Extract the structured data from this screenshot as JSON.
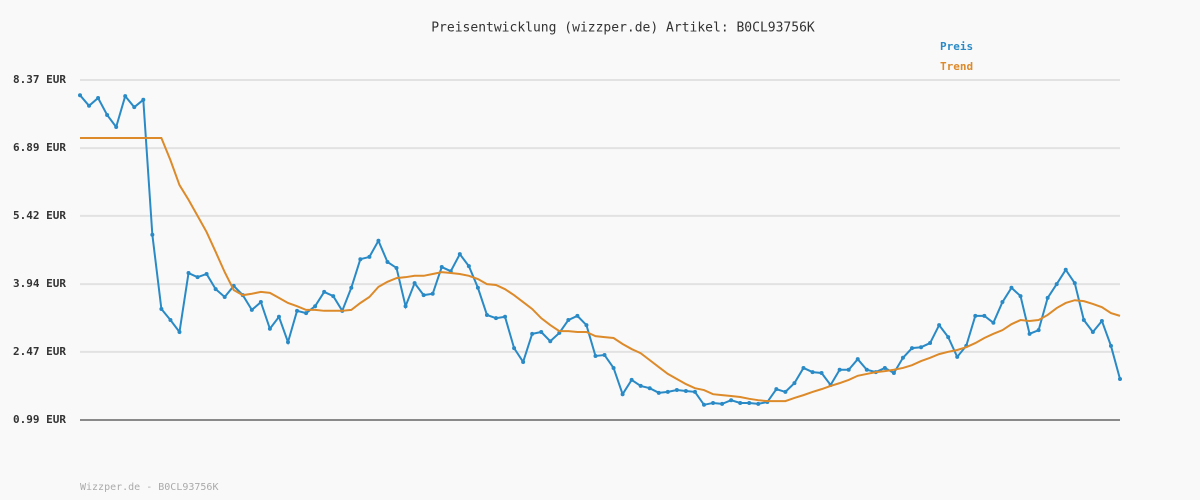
{
  "chart_data": {
    "type": "line",
    "title": "Preisentwicklung (wizzper.de) Artikel: B0CL93756K",
    "ylim": [
      0.99,
      8.37
    ],
    "yticks": [
      {
        "value": 0.99,
        "label": "0.99 EUR"
      },
      {
        "value": 2.47,
        "label": "2.47 EUR"
      },
      {
        "value": 3.94,
        "label": "3.94 EUR"
      },
      {
        "value": 5.42,
        "label": "5.42 EUR"
      },
      {
        "value": 6.89,
        "label": "6.89 EUR"
      },
      {
        "value": 8.37,
        "label": "8.37 EUR"
      }
    ],
    "grid": true,
    "legend": "top-right",
    "series": [
      {
        "name": "Preis",
        "color": "#2a8ac6",
        "markers": true,
        "values": [
          8.04,
          7.81,
          7.98,
          7.61,
          7.35,
          8.02,
          7.78,
          7.94,
          5.01,
          3.4,
          3.16,
          2.9,
          4.18,
          4.09,
          4.16,
          3.83,
          3.66,
          3.9,
          3.7,
          3.38,
          3.55,
          2.97,
          3.23,
          2.68,
          3.36,
          3.31,
          3.46,
          3.77,
          3.68,
          3.36,
          3.86,
          4.48,
          4.53,
          4.88,
          4.42,
          4.29,
          3.46,
          3.96,
          3.7,
          3.73,
          4.31,
          4.22,
          4.59,
          4.33,
          3.86,
          3.27,
          3.2,
          3.23,
          2.55,
          2.25,
          2.86,
          2.9,
          2.7,
          2.88,
          3.16,
          3.25,
          3.05,
          2.38,
          2.4,
          2.12,
          1.55,
          1.86,
          1.73,
          1.68,
          1.58,
          1.6,
          1.64,
          1.62,
          1.6,
          1.32,
          1.36,
          1.34,
          1.42,
          1.36,
          1.36,
          1.34,
          1.38,
          1.66,
          1.6,
          1.79,
          2.12,
          2.03,
          2.01,
          1.75,
          2.08,
          2.08,
          2.31,
          2.08,
          2.03,
          2.12,
          2.01,
          2.34,
          2.55,
          2.57,
          2.66,
          3.05,
          2.79,
          2.36,
          2.6,
          3.25,
          3.25,
          3.1,
          3.55,
          3.86,
          3.68,
          2.86,
          2.94,
          3.64,
          3.94,
          4.25,
          3.96,
          3.16,
          2.9,
          3.14,
          2.6,
          1.88
        ]
      },
      {
        "name": "Trend",
        "color": "#dc8a2a",
        "markers": false,
        "values": [
          7.11,
          7.11,
          7.11,
          7.11,
          7.11,
          7.11,
          7.11,
          7.11,
          7.11,
          7.11,
          6.63,
          6.09,
          5.77,
          5.42,
          5.07,
          4.64,
          4.2,
          3.81,
          3.7,
          3.73,
          3.77,
          3.75,
          3.64,
          3.53,
          3.46,
          3.38,
          3.38,
          3.36,
          3.36,
          3.36,
          3.38,
          3.53,
          3.66,
          3.88,
          3.99,
          4.07,
          4.09,
          4.12,
          4.12,
          4.16,
          4.2,
          4.18,
          4.16,
          4.12,
          4.05,
          3.94,
          3.92,
          3.83,
          3.7,
          3.55,
          3.4,
          3.2,
          3.05,
          2.92,
          2.92,
          2.9,
          2.9,
          2.81,
          2.79,
          2.77,
          2.64,
          2.53,
          2.44,
          2.29,
          2.14,
          1.99,
          1.88,
          1.77,
          1.68,
          1.64,
          1.55,
          1.53,
          1.51,
          1.49,
          1.45,
          1.42,
          1.4,
          1.4,
          1.4,
          1.47,
          1.53,
          1.6,
          1.66,
          1.73,
          1.79,
          1.86,
          1.95,
          1.99,
          2.03,
          2.05,
          2.08,
          2.12,
          2.18,
          2.27,
          2.34,
          2.42,
          2.47,
          2.51,
          2.57,
          2.66,
          2.77,
          2.86,
          2.94,
          3.07,
          3.16,
          3.14,
          3.16,
          3.27,
          3.42,
          3.53,
          3.59,
          3.57,
          3.51,
          3.44,
          3.31,
          3.25
        ]
      }
    ]
  },
  "footer": "Wizzper.de - B0CL93756K"
}
